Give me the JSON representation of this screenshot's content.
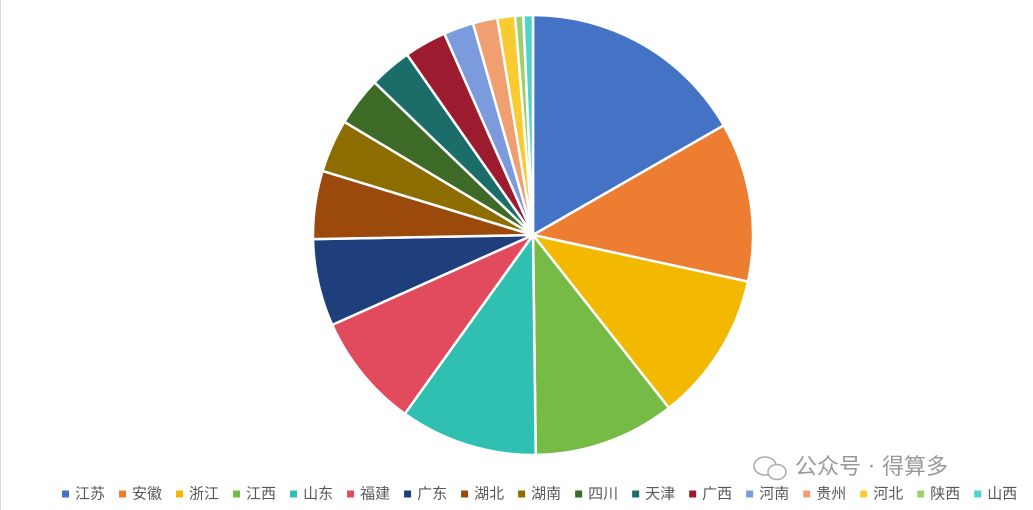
{
  "chart_data": {
    "type": "pie",
    "categories": [
      "江苏",
      "安徽",
      "浙江",
      "江西",
      "山东",
      "福建",
      "广东",
      "湖北",
      "湖南",
      "四川",
      "天津",
      "广西",
      "河南",
      "贵州",
      "河北",
      "陕西",
      "山西"
    ],
    "values": [
      16.7,
      11.7,
      11,
      10.4,
      10.1,
      8.4,
      6.4,
      5,
      3.9,
      3.6,
      3.1,
      3.1,
      2.2,
      1.8,
      1.3,
      0.6,
      0.7
    ],
    "colors": [
      "#4472c4",
      "#ed7d31",
      "#f2b900",
      "#76bb45",
      "#2fc0b2",
      "#e24a5e",
      "#1f3e7c",
      "#9c4a0c",
      "#8d6c00",
      "#3d6a26",
      "#1b6d69",
      "#9c1b2e",
      "#7b9bdc",
      "#f0a070",
      "#f9cb30",
      "#9fcf6c",
      "#4fd4c8"
    ],
    "legend": "bottom",
    "watermark": "公众号 · 得算多"
  }
}
